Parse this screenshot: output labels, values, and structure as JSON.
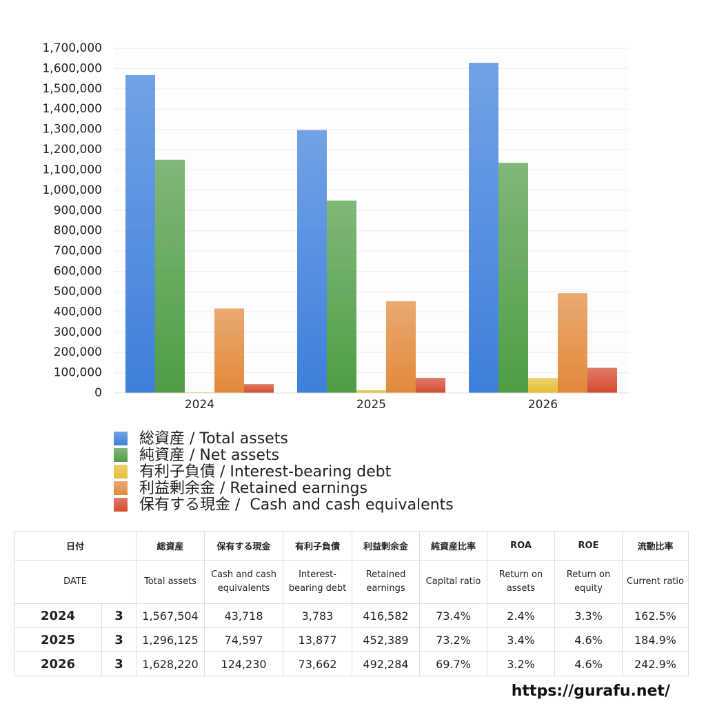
{
  "chart_data": {
    "type": "bar",
    "categories": [
      "2024",
      "2025",
      "2026"
    ],
    "series": [
      {
        "name": "総資産 / Total assets",
        "color": "#3d7fdc",
        "values": [
          1567504,
          1296125,
          1628220
        ]
      },
      {
        "name": "純資産 / Net assets",
        "color": "#4f9d45",
        "values": [
          1150000,
          949000,
          1135000
        ]
      },
      {
        "name": "有利子負債 / Interest-bearing debt",
        "color": "#e6be35",
        "values": [
          3783,
          13877,
          73662
        ]
      },
      {
        "name": "利益剰余金 / Retained earnings",
        "color": "#e2893a",
        "values": [
          416582,
          452389,
          492284
        ]
      },
      {
        "name": "保有する現金 /  Cash and cash equivalents",
        "color": "#d44a2e",
        "values": [
          43718,
          74597,
          124230
        ]
      }
    ],
    "ylim": [
      0,
      1700000
    ],
    "yticks": [
      0,
      {
        "value": 100000,
        "label": "100,000"
      },
      {
        "value": 200000,
        "label": "200,000"
      },
      {
        "value": 300000,
        "label": "300,000"
      },
      {
        "value": 400000,
        "label": "400,000"
      },
      {
        "value": 500000,
        "label": "500,000"
      },
      {
        "value": 600000,
        "label": "600,000"
      },
      {
        "value": 700000,
        "label": "700,000"
      },
      {
        "value": 800000,
        "label": "800,000"
      },
      {
        "value": 900000,
        "label": "900,000"
      },
      {
        "value": 1000000,
        "label": "1,000,000"
      },
      {
        "value": 1100000,
        "label": "1,100,000"
      },
      {
        "value": 1200000,
        "label": "1,200,000"
      },
      {
        "value": 1300000,
        "label": "1,300,000"
      },
      {
        "value": 1400000,
        "label": "1,400,000"
      },
      {
        "value": 1500000,
        "label": "1,500,000"
      },
      {
        "value": 1600000,
        "label": "1,600,000"
      },
      {
        "value": 1700000,
        "label": "1,700,000"
      }
    ],
    "grid": true,
    "legend": "bottom"
  },
  "table": {
    "header_ja": [
      "日付",
      "総資産",
      "保有する現金",
      "有利子負債",
      "利益剰余金",
      "純資産比率",
      "ROA",
      "ROE",
      "流動比率"
    ],
    "header_en": [
      "DATE",
      "Total assets",
      "Cash and cash equivalents",
      "Interest-bearing debt",
      "Retained earnings",
      "Capital ratio",
      "Return on assets",
      "Return on equity",
      "Current ratio"
    ],
    "rows": [
      [
        "2024",
        "3",
        "1,567,504",
        "43,718",
        "3,783",
        "416,582",
        "73.4%",
        "2.4%",
        "3.3%",
        "162.5%"
      ],
      [
        "2025",
        "3",
        "1,296,125",
        "74,597",
        "13,877",
        "452,389",
        "73.2%",
        "3.4%",
        "4.6%",
        "184.9%"
      ],
      [
        "2026",
        "3",
        "1,628,220",
        "124,230",
        "73,662",
        "492,284",
        "69.7%",
        "3.2%",
        "4.6%",
        "242.9%"
      ]
    ]
  },
  "footer": "https://gurafu.net/"
}
